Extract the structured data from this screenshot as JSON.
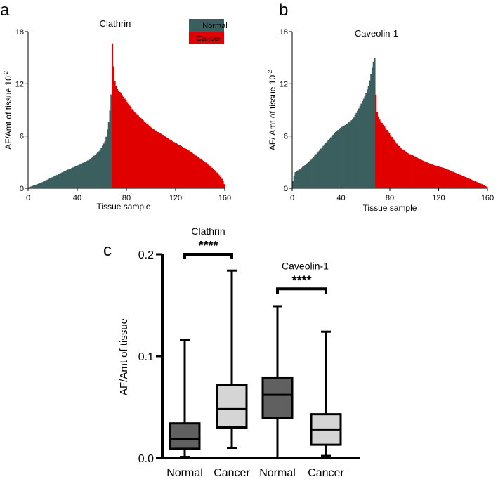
{
  "panels": {
    "a": {
      "letter": "a"
    },
    "b": {
      "letter": "b"
    },
    "c": {
      "letter": "c"
    }
  },
  "colors": {
    "normal": "#3b5f5e",
    "cancer": "#e00000",
    "box_normal": "#606060",
    "box_cancer": "#d5d5d5"
  },
  "chart_data": [
    {
      "type": "bar",
      "title": "Clathrin",
      "xlabel": "Tissue sample",
      "ylabel": "AF/Amt of tissue 10",
      "ylabel_exp": "-2",
      "xlim": [
        0,
        160
      ],
      "ylim": [
        0,
        18
      ],
      "xticks": [
        "0",
        "40",
        "80",
        "120",
        "160"
      ],
      "yticks": [
        "0",
        "6",
        "12",
        "18"
      ],
      "legend": {
        "position": "top-right",
        "entries": [
          "Normal",
          "Cancer"
        ]
      },
      "series": [
        {
          "name": "Normal",
          "x_range": [
            0,
            68
          ],
          "profile": [
            [
              0,
              0.1
            ],
            [
              10,
              0.6
            ],
            [
              20,
              1.3
            ],
            [
              30,
              2.0
            ],
            [
              40,
              2.6
            ],
            [
              50,
              3.3
            ],
            [
              58,
              4.3
            ],
            [
              63,
              5.5
            ],
            [
              66,
              8.0
            ],
            [
              68,
              11.7
            ]
          ]
        },
        {
          "name": "Cancer",
          "x_range": [
            68,
            160
          ],
          "profile": [
            [
              68,
              17.9
            ],
            [
              69,
              15.4
            ],
            [
              70,
              12.6
            ],
            [
              72,
              11.5
            ],
            [
              76,
              10.8
            ],
            [
              80,
              10.0
            ],
            [
              85,
              9.0
            ],
            [
              90,
              8.3
            ],
            [
              95,
              7.6
            ],
            [
              100,
              7.0
            ],
            [
              105,
              6.5
            ],
            [
              110,
              6.1
            ],
            [
              115,
              5.6
            ],
            [
              120,
              5.2
            ],
            [
              125,
              4.8
            ],
            [
              130,
              4.4
            ],
            [
              135,
              3.9
            ],
            [
              140,
              3.4
            ],
            [
              145,
              2.9
            ],
            [
              150,
              2.3
            ],
            [
              155,
              1.6
            ],
            [
              158,
              1.0
            ],
            [
              160,
              0.3
            ]
          ]
        }
      ]
    },
    {
      "type": "bar",
      "title": "Caveolin-1",
      "xlabel": "Tissue sample",
      "ylabel": "AF/ Amt of tissue 10",
      "ylabel_exp": "-2",
      "xlim": [
        0,
        160
      ],
      "ylim": [
        0,
        18
      ],
      "xticks": [
        "0",
        "40",
        "80",
        "120",
        "160"
      ],
      "yticks": [
        "0",
        "6",
        "12",
        "18"
      ],
      "series": [
        {
          "name": "Normal",
          "x_range": [
            0,
            68
          ],
          "profile": [
            [
              0,
              0.5
            ],
            [
              2,
              1.8
            ],
            [
              5,
              2.1
            ],
            [
              10,
              2.6
            ],
            [
              15,
              3.2
            ],
            [
              20,
              4.0
            ],
            [
              25,
              4.8
            ],
            [
              30,
              5.6
            ],
            [
              35,
              6.4
            ],
            [
              40,
              7.0
            ],
            [
              45,
              7.4
            ],
            [
              50,
              8.0
            ],
            [
              55,
              9.3
            ],
            [
              60,
              10.7
            ],
            [
              63,
              12.0
            ],
            [
              65,
              13.5
            ],
            [
              67,
              14.9
            ],
            [
              68,
              15.0
            ]
          ]
        },
        {
          "name": "Cancer",
          "x_range": [
            68,
            160
          ],
          "profile": [
            [
              68,
              12.5
            ],
            [
              69,
              9.0
            ],
            [
              71,
              8.0
            ],
            [
              75,
              7.2
            ],
            [
              80,
              6.2
            ],
            [
              85,
              5.2
            ],
            [
              90,
              4.5
            ],
            [
              95,
              4.0
            ],
            [
              100,
              3.7
            ],
            [
              105,
              3.3
            ],
            [
              110,
              3.0
            ],
            [
              115,
              2.7
            ],
            [
              120,
              2.5
            ],
            [
              125,
              2.3
            ],
            [
              130,
              2.0
            ],
            [
              135,
              1.7
            ],
            [
              140,
              1.4
            ],
            [
              145,
              1.1
            ],
            [
              150,
              0.8
            ],
            [
              155,
              0.5
            ],
            [
              158,
              0.3
            ],
            [
              160,
              0.1
            ]
          ]
        }
      ]
    },
    {
      "type": "box",
      "title": "",
      "ylabel": "AF/Amt of tissue",
      "ylim": [
        0,
        0.2
      ],
      "yticks": [
        "0.0",
        "0.1",
        "0.2"
      ],
      "categories": [
        "Normal",
        "Cancer",
        "Normal",
        "Cancer"
      ],
      "boxes": [
        {
          "category": "Normal",
          "whisker_low": 0.001,
          "q1": 0.009,
          "median": 0.019,
          "q3": 0.034,
          "whisker_high": 0.116
        },
        {
          "category": "Cancer",
          "whisker_low": 0.01,
          "q1": 0.03,
          "median": 0.048,
          "q3": 0.072,
          "whisker_high": 0.184
        },
        {
          "category": "Normal",
          "whisker_low": 0.0,
          "q1": 0.039,
          "median": 0.062,
          "q3": 0.079,
          "whisker_high": 0.149
        },
        {
          "category": "Cancer",
          "whisker_low": 0.002,
          "q1": 0.013,
          "median": 0.028,
          "q3": 0.043,
          "whisker_high": 0.124
        }
      ],
      "comparisons": [
        {
          "title": "Clathrin",
          "stars": "****",
          "between": [
            0,
            1
          ],
          "level": 0.2
        },
        {
          "title": "Caveolin-1",
          "stars": "****",
          "between": [
            2,
            3
          ],
          "level": 0.166
        }
      ]
    }
  ]
}
